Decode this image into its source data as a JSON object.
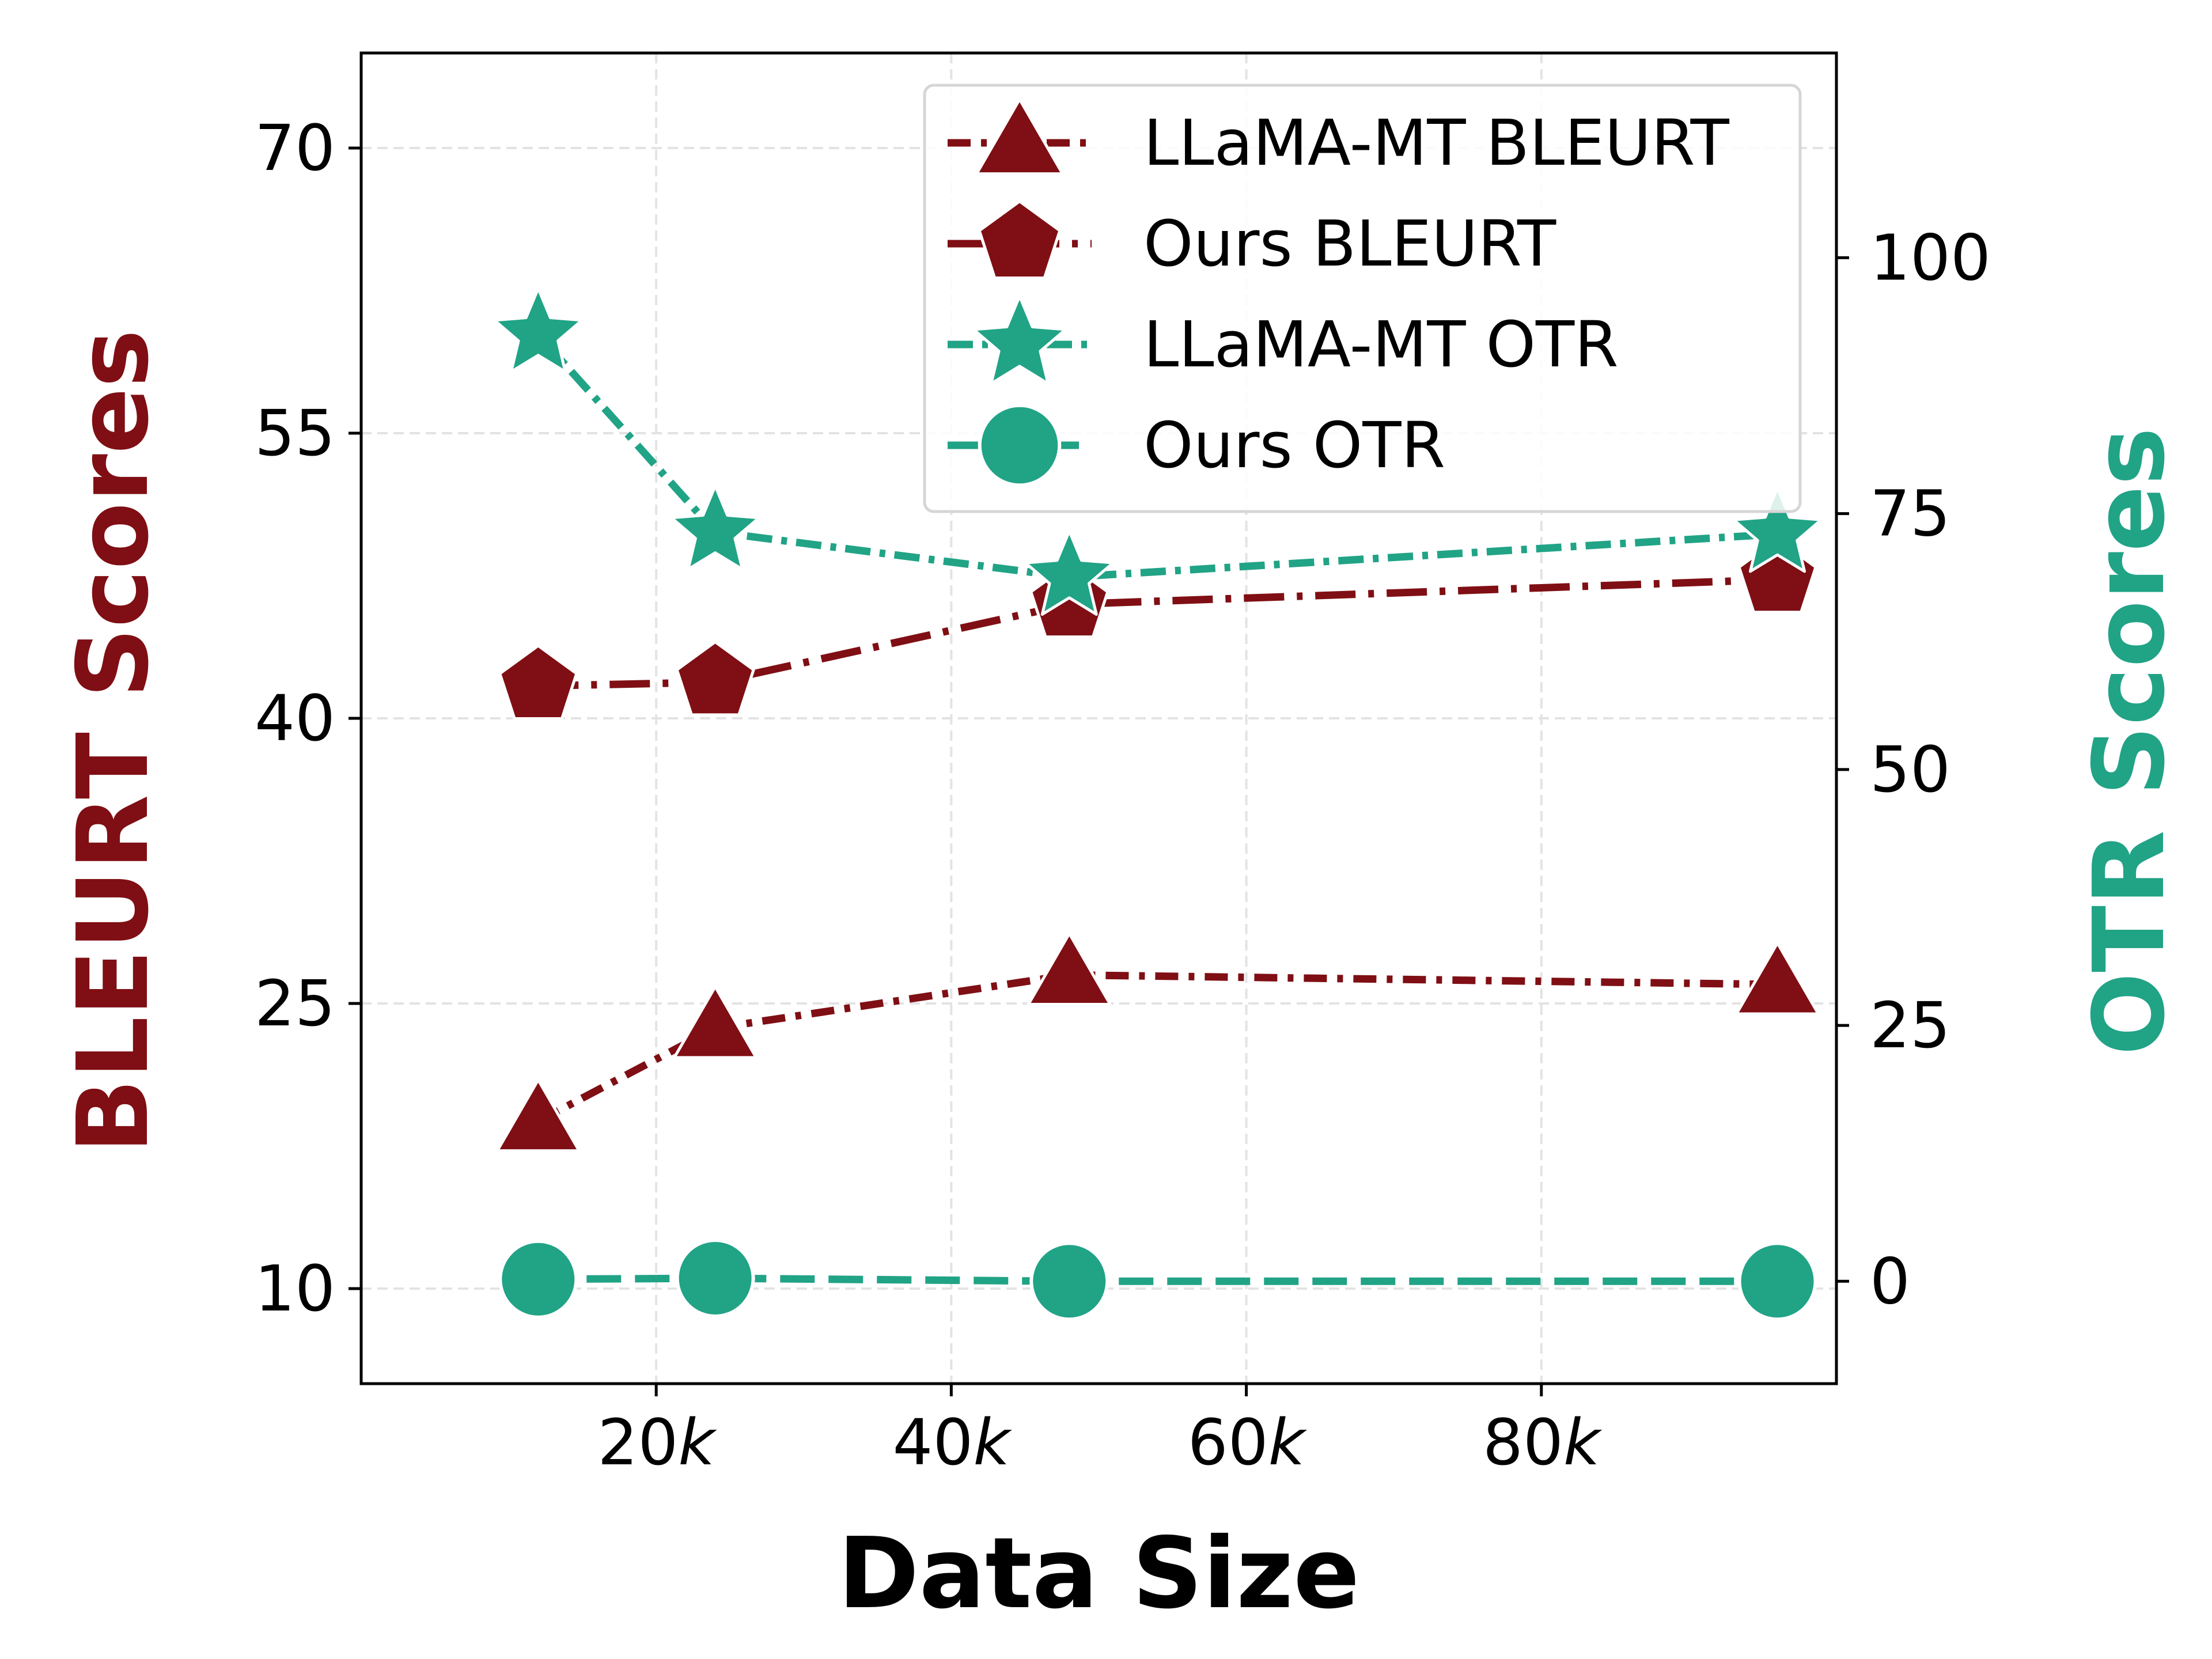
{
  "colors": {
    "bleurt": "#7f0f14",
    "otr": "#21a386",
    "grid": "#e3e3e3",
    "axis": "#000000"
  },
  "chart_data": {
    "type": "line",
    "xlabel": "Data Size",
    "ylabel_left": "BLEURT Scores",
    "ylabel_right": "OTR Scores",
    "x_unit": "k",
    "xlim": [
      0,
      100
    ],
    "x_ticks": [
      20,
      40,
      60,
      80
    ],
    "x_tick_labels": [
      "20k",
      "40k",
      "60k",
      "80k"
    ],
    "ylim_left": [
      5,
      75
    ],
    "y_ticks_left": [
      10,
      25,
      40,
      55,
      70
    ],
    "ylim_right": [
      -10,
      120
    ],
    "y_ticks_right": [
      0,
      25,
      50,
      75,
      100
    ],
    "grid": true,
    "legend_position": "upper right",
    "x": [
      12,
      24,
      48,
      96
    ],
    "series": [
      {
        "name": "LLaMA-MT BLEURT",
        "axis": "left",
        "marker": "triangle",
        "line": "dashdot",
        "color": "bleurt",
        "values": [
          18.8,
          23.7,
          26.5,
          26.0
        ]
      },
      {
        "name": "Ours BLEURT",
        "axis": "left",
        "marker": "pentagon",
        "line": "dashdot-long",
        "color": "bleurt",
        "values": [
          41.7,
          41.9,
          46.0,
          47.3
        ]
      },
      {
        "name": "LLaMA-MT OTR",
        "axis": "right",
        "marker": "star",
        "line": "dashed-dot",
        "color": "otr",
        "values": [
          92.5,
          73.2,
          68.8,
          73.0
        ]
      },
      {
        "name": "Ours OTR",
        "axis": "right",
        "marker": "circle",
        "line": "dashed",
        "color": "otr",
        "values": [
          0.2,
          0.3,
          0.0,
          0.0
        ]
      }
    ]
  }
}
